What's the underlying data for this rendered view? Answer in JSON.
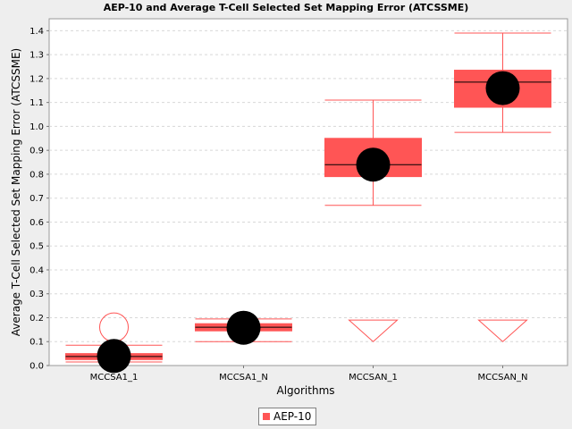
{
  "chart_data": {
    "type": "box",
    "title": "AEP-10 and Average T-Cell Selected Set Mapping Error (ATCSSME)",
    "xlabel": "Algorithms",
    "ylabel": "Average T-Cell Selected Set Mapping Error (ATCSSME)",
    "categories": [
      "MCCSA1_1",
      "MCCSA1_N",
      "MCCSAN_1",
      "MCCSAN_N"
    ],
    "ylim": [
      0,
      1.45
    ],
    "yticks": [
      "0.0",
      "0.1",
      "0.2",
      "0.3",
      "0.4",
      "0.5",
      "0.6",
      "0.7",
      "0.8",
      "0.9",
      "1.0",
      "1.1",
      "1.2",
      "1.3",
      "1.4"
    ],
    "grid": true,
    "legend_position": "bottom",
    "series": [
      {
        "name": "AEP-10",
        "color": "#ff5555",
        "boxes": [
          {
            "category": "MCCSA1_1",
            "min": 0.015,
            "q1": 0.025,
            "median": 0.038,
            "q3": 0.05,
            "max": 0.085,
            "mean": 0.04,
            "outliers": [
              0.16
            ],
            "far_out_below": false
          },
          {
            "category": "MCCSA1_N",
            "min": 0.1,
            "q1": 0.145,
            "median": 0.16,
            "q3": 0.175,
            "max": 0.195,
            "mean": 0.158,
            "outliers": [],
            "far_out_below": false
          },
          {
            "category": "MCCSAN_1",
            "min": 0.67,
            "q1": 0.79,
            "median": 0.84,
            "q3": 0.95,
            "max": 1.11,
            "mean": 0.84,
            "outliers": [],
            "far_out_below": true
          },
          {
            "category": "MCCSAN_N",
            "min": 0.975,
            "q1": 1.08,
            "median": 1.185,
            "q3": 1.235,
            "max": 1.39,
            "mean": 1.16,
            "outliers": [],
            "far_out_below": true
          }
        ]
      }
    ]
  },
  "legend": {
    "label": "AEP-10"
  }
}
